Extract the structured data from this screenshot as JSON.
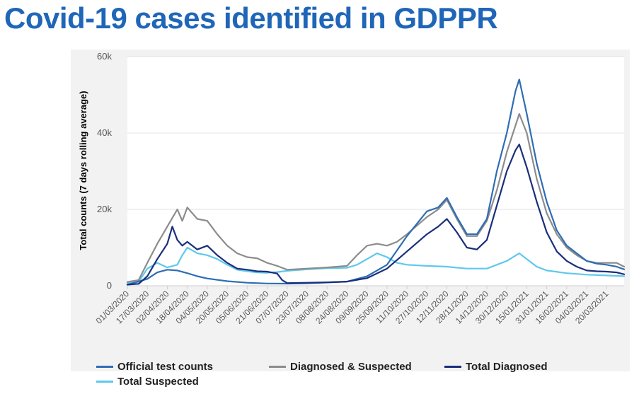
{
  "title": "Covid-19 cases identified in GDPPR",
  "chart_data": {
    "type": "line",
    "ylabel": "Total counts (7 days rolling average)",
    "xlabel": "",
    "ylim": [
      0,
      60000
    ],
    "y_ticks": [
      {
        "value": 0,
        "label": "0"
      },
      {
        "value": 20000,
        "label": "20k"
      },
      {
        "value": 40000,
        "label": "40k"
      },
      {
        "value": 60000,
        "label": "60k"
      }
    ],
    "x_tick_labels": [
      "01/03/2020",
      "17/03/2020",
      "02/04/2020",
      "18/04/2020",
      "04/05/2020",
      "20/05/2020",
      "05/06/2020",
      "21/06/2020",
      "07/07/2020",
      "23/07/2020",
      "08/08/2020",
      "24/08/2020",
      "09/09/2020",
      "25/09/2020",
      "11/10/2020",
      "27/10/2020",
      "12/11/2020",
      "28/11/2020",
      "14/12/2020",
      "30/12/2020",
      "15/01/2021",
      "31/01/2021",
      "16/02/2021",
      "04/03/2021",
      "20/03/2021"
    ],
    "x_start_date": "01/03/2020",
    "x_end_date": "03/04/2021",
    "grid": true,
    "legend_position": "bottom",
    "series": [
      {
        "name": "Official test counts",
        "color": "#2e6db4",
        "points": [
          [
            "01/03/2020",
            300
          ],
          [
            "17/03/2020",
            1800
          ],
          [
            "25/03/2020",
            3500
          ],
          [
            "02/04/2020",
            4200
          ],
          [
            "10/04/2020",
            4000
          ],
          [
            "18/04/2020",
            3300
          ],
          [
            "26/04/2020",
            2500
          ],
          [
            "04/05/2020",
            1900
          ],
          [
            "20/05/2020",
            1200
          ],
          [
            "05/06/2020",
            800
          ],
          [
            "21/06/2020",
            600
          ],
          [
            "07/07/2020",
            550
          ],
          [
            "23/07/2020",
            650
          ],
          [
            "08/08/2020",
            850
          ],
          [
            "24/08/2020",
            1100
          ],
          [
            "09/09/2020",
            2500
          ],
          [
            "25/09/2020",
            5500
          ],
          [
            "11/10/2020",
            13000
          ],
          [
            "27/10/2020",
            19500
          ],
          [
            "05/11/2020",
            20500
          ],
          [
            "12/11/2020",
            23000
          ],
          [
            "20/11/2020",
            18000
          ],
          [
            "28/11/2020",
            13500
          ],
          [
            "06/12/2020",
            13500
          ],
          [
            "14/12/2020",
            17500
          ],
          [
            "22/12/2020",
            30000
          ],
          [
            "30/12/2020",
            40000
          ],
          [
            "06/01/2021",
            51000
          ],
          [
            "09/01/2021",
            54000
          ],
          [
            "15/01/2021",
            45000
          ],
          [
            "23/01/2021",
            32000
          ],
          [
            "31/01/2021",
            22000
          ],
          [
            "08/02/2021",
            14500
          ],
          [
            "16/02/2021",
            10500
          ],
          [
            "24/02/2021",
            8500
          ],
          [
            "04/03/2021",
            6500
          ],
          [
            "12/03/2021",
            5800
          ],
          [
            "20/03/2021",
            5500
          ],
          [
            "28/03/2021",
            5000
          ],
          [
            "03/04/2021",
            4300
          ]
        ]
      },
      {
        "name": "Diagnosed & Suspected",
        "color": "#8c8c8c",
        "points": [
          [
            "01/03/2020",
            1000
          ],
          [
            "10/03/2020",
            1500
          ],
          [
            "17/03/2020",
            6000
          ],
          [
            "25/03/2020",
            11000
          ],
          [
            "02/04/2020",
            15500
          ],
          [
            "10/04/2020",
            20000
          ],
          [
            "14/04/2020",
            17000
          ],
          [
            "18/04/2020",
            20500
          ],
          [
            "26/04/2020",
            17500
          ],
          [
            "04/05/2020",
            17000
          ],
          [
            "12/05/2020",
            13500
          ],
          [
            "20/05/2020",
            10500
          ],
          [
            "28/05/2020",
            8500
          ],
          [
            "05/06/2020",
            7500
          ],
          [
            "13/06/2020",
            7200
          ],
          [
            "21/06/2020",
            6000
          ],
          [
            "29/06/2020",
            5200
          ],
          [
            "07/07/2020",
            4200
          ],
          [
            "23/07/2020",
            4500
          ],
          [
            "08/08/2020",
            4800
          ],
          [
            "24/08/2020",
            5200
          ],
          [
            "01/09/2020",
            8000
          ],
          [
            "09/09/2020",
            10500
          ],
          [
            "17/09/2020",
            11000
          ],
          [
            "25/09/2020",
            10500
          ],
          [
            "03/10/2020",
            11500
          ],
          [
            "11/10/2020",
            13500
          ],
          [
            "27/10/2020",
            18000
          ],
          [
            "05/11/2020",
            20000
          ],
          [
            "12/11/2020",
            22500
          ],
          [
            "20/11/2020",
            17500
          ],
          [
            "28/11/2020",
            13000
          ],
          [
            "06/12/2020",
            13000
          ],
          [
            "14/12/2020",
            17000
          ],
          [
            "22/12/2020",
            25000
          ],
          [
            "30/12/2020",
            35000
          ],
          [
            "09/01/2021",
            45000
          ],
          [
            "15/01/2021",
            40000
          ],
          [
            "23/01/2021",
            28000
          ],
          [
            "31/01/2021",
            19000
          ],
          [
            "08/02/2021",
            13500
          ],
          [
            "16/02/2021",
            10000
          ],
          [
            "24/02/2021",
            8000
          ],
          [
            "04/03/2021",
            6500
          ],
          [
            "12/03/2021",
            6000
          ],
          [
            "20/03/2021",
            6000
          ],
          [
            "28/03/2021",
            6000
          ],
          [
            "03/04/2021",
            5000
          ]
        ]
      },
      {
        "name": "Total Diagnosed",
        "color": "#1a2f7a",
        "points": [
          [
            "01/03/2020",
            300
          ],
          [
            "10/03/2020",
            500
          ],
          [
            "17/03/2020",
            2500
          ],
          [
            "25/03/2020",
            7000
          ],
          [
            "02/04/2020",
            11000
          ],
          [
            "06/04/2020",
            15500
          ],
          [
            "10/04/2020",
            12000
          ],
          [
            "14/04/2020",
            10500
          ],
          [
            "18/04/2020",
            11500
          ],
          [
            "26/04/2020",
            9500
          ],
          [
            "04/05/2020",
            10500
          ],
          [
            "12/05/2020",
            8000
          ],
          [
            "20/05/2020",
            6000
          ],
          [
            "28/05/2020",
            4500
          ],
          [
            "05/06/2020",
            4200
          ],
          [
            "13/06/2020",
            3800
          ],
          [
            "21/06/2020",
            3700
          ],
          [
            "29/06/2020",
            3200
          ],
          [
            "03/07/2020",
            1500
          ],
          [
            "07/07/2020",
            700
          ],
          [
            "23/07/2020",
            800
          ],
          [
            "08/08/2020",
            900
          ],
          [
            "24/08/2020",
            1100
          ],
          [
            "09/09/2020",
            2000
          ],
          [
            "25/09/2020",
            4500
          ],
          [
            "11/10/2020",
            9000
          ],
          [
            "27/10/2020",
            13500
          ],
          [
            "05/11/2020",
            15500
          ],
          [
            "12/11/2020",
            17500
          ],
          [
            "20/11/2020",
            14000
          ],
          [
            "28/11/2020",
            10000
          ],
          [
            "06/12/2020",
            9500
          ],
          [
            "14/12/2020",
            12000
          ],
          [
            "22/12/2020",
            21000
          ],
          [
            "30/12/2020",
            30000
          ],
          [
            "06/01/2021",
            35500
          ],
          [
            "09/01/2021",
            37000
          ],
          [
            "15/01/2021",
            31000
          ],
          [
            "23/01/2021",
            22000
          ],
          [
            "31/01/2021",
            14000
          ],
          [
            "08/02/2021",
            9000
          ],
          [
            "16/02/2021",
            6500
          ],
          [
            "24/02/2021",
            5000
          ],
          [
            "04/03/2021",
            4000
          ],
          [
            "12/03/2021",
            3800
          ],
          [
            "20/03/2021",
            3700
          ],
          [
            "28/03/2021",
            3500
          ],
          [
            "03/04/2021",
            3000
          ]
        ]
      },
      {
        "name": "Total Suspected",
        "color": "#5ec8ec",
        "points": [
          [
            "01/03/2020",
            700
          ],
          [
            "10/03/2020",
            1000
          ],
          [
            "17/03/2020",
            4500
          ],
          [
            "25/03/2020",
            6000
          ],
          [
            "02/04/2020",
            4800
          ],
          [
            "10/04/2020",
            5500
          ],
          [
            "14/04/2020",
            8000
          ],
          [
            "18/04/2020",
            10000
          ],
          [
            "26/04/2020",
            8500
          ],
          [
            "04/05/2020",
            8000
          ],
          [
            "12/05/2020",
            7000
          ],
          [
            "20/05/2020",
            5500
          ],
          [
            "28/05/2020",
            4200
          ],
          [
            "05/06/2020",
            3800
          ],
          [
            "13/06/2020",
            3500
          ],
          [
            "21/06/2020",
            3400
          ],
          [
            "29/06/2020",
            3600
          ],
          [
            "07/07/2020",
            3900
          ],
          [
            "23/07/2020",
            4300
          ],
          [
            "08/08/2020",
            4600
          ],
          [
            "24/08/2020",
            4700
          ],
          [
            "01/09/2020",
            5500
          ],
          [
            "09/09/2020",
            7000
          ],
          [
            "17/09/2020",
            8500
          ],
          [
            "25/09/2020",
            7500
          ],
          [
            "03/10/2020",
            6000
          ],
          [
            "11/10/2020",
            5500
          ],
          [
            "27/10/2020",
            5200
          ],
          [
            "12/11/2020",
            5000
          ],
          [
            "28/11/2020",
            4500
          ],
          [
            "14/12/2020",
            4500
          ],
          [
            "30/12/2020",
            6500
          ],
          [
            "09/01/2021",
            8500
          ],
          [
            "15/01/2021",
            7000
          ],
          [
            "23/01/2021",
            5000
          ],
          [
            "31/01/2021",
            4000
          ],
          [
            "16/02/2021",
            3300
          ],
          [
            "04/03/2021",
            2900
          ],
          [
            "20/03/2021",
            2700
          ],
          [
            "03/04/2021",
            2500
          ]
        ]
      }
    ]
  }
}
